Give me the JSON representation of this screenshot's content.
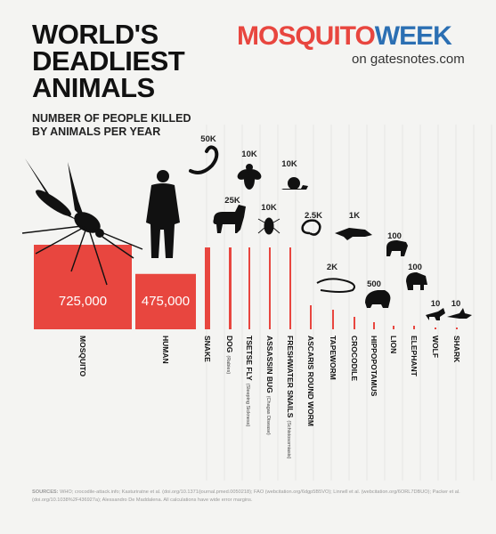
{
  "header": {
    "title_lines": [
      "WORLD'S",
      "DEADLIEST",
      "ANIMALS"
    ],
    "subtitle_lines": [
      "NUMBER OF PEOPLE KILLED",
      "BY ANIMALS PER YEAR"
    ],
    "brand_part1": "MOSQUITO",
    "brand_part2": "WEEK",
    "brand_sub": "on gatesnotes.com"
  },
  "colors": {
    "bar": "#e8463f",
    "brand_red": "#e8463f",
    "brand_blue": "#2b6fb3",
    "silhouette": "#111111",
    "background": "#f4f4f2"
  },
  "chart_data": {
    "type": "bar",
    "title": "WORLD'S DEADLIEST ANIMALS",
    "subtitle": "NUMBER OF PEOPLE KILLED BY ANIMALS PER YEAR",
    "categories": [
      "MOSQUITO",
      "HUMAN",
      "SNAKE",
      "DOG",
      "TSETSE FLY",
      "ASSASSIN BUG",
      "FRESHWATER SNAILS",
      "ASCARIS ROUND WORM",
      "TAPEWORM",
      "CROCODILE",
      "HIPPOPOTAMUS",
      "LION",
      "ELEPHANT",
      "WOLF",
      "SHARK"
    ],
    "notes": [
      "",
      "",
      "",
      "(Rabies)",
      "(Sleeping Sickness)",
      "(Chagas Disease)",
      "(Schistosomiasis)",
      "",
      "",
      "",
      "",
      "",
      "",
      "",
      ""
    ],
    "values": [
      725000,
      475000,
      50000,
      25000,
      10000,
      10000,
      10000,
      2500,
      2000,
      1000,
      500,
      100,
      100,
      10,
      10
    ],
    "value_labels": [
      "725,000",
      "475,000",
      "50K",
      "25K",
      "10K",
      "10K",
      "10K",
      "2.5K",
      "2K",
      "1K",
      "500",
      "100",
      "100",
      "10",
      "10"
    ],
    "icons": [
      "mosquito-icon",
      "human-icon",
      "snake-icon",
      "dog-icon",
      "tsetse-fly-icon",
      "assassin-bug-icon",
      "snail-icon",
      "roundworm-icon",
      "tapeworm-icon",
      "crocodile-icon",
      "hippopotamus-icon",
      "lion-icon",
      "elephant-icon",
      "wolf-icon",
      "shark-icon"
    ]
  },
  "sources": {
    "label": "SOURCES:",
    "text": "WHO; crocodile-attack.info; Kasturiratne et al. (doi.org/10.1371/journal.pmed.0050218); FAO (webcitation.org/6dgp5B5VO); Linnell et al. (webcitation.org/6ORL7DBUO); Packer et al. (doi.org/10.1038%2F436927a); Alessandro De Maddalena.  All calculations have wide error margins."
  }
}
